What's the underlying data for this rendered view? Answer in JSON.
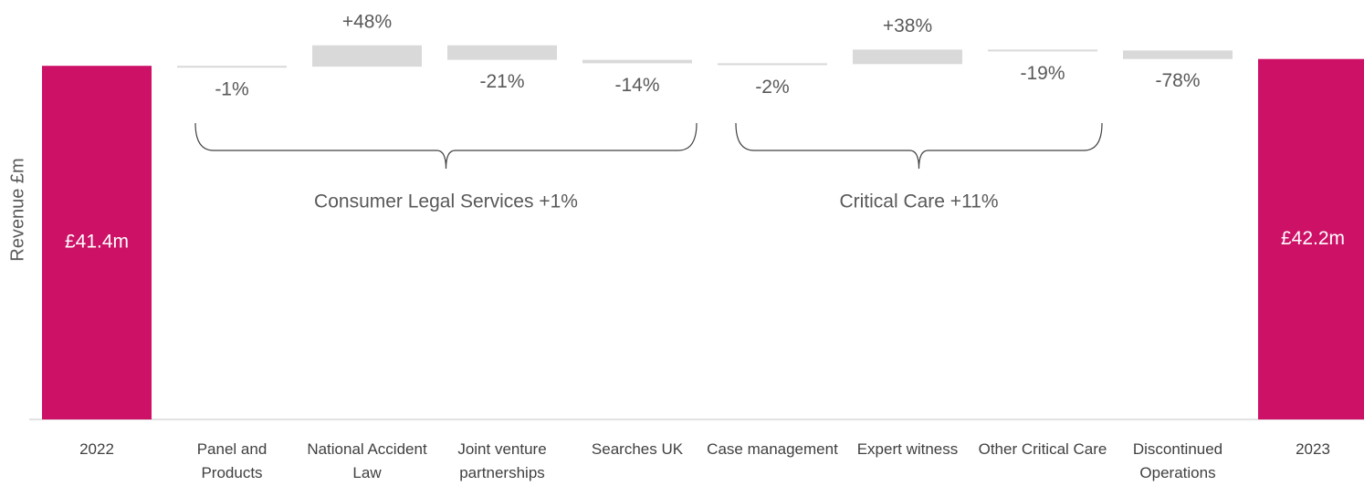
{
  "chart_data": {
    "type": "waterfall",
    "y_label": "Revenue £m",
    "categories": [
      "2022",
      "Panel and Products",
      "National Accident Law",
      "Joint venture partnerships",
      "Searches UK",
      "Case management",
      "Expert witness",
      "Other Critical Care",
      "Discontinued Operations",
      "2023"
    ],
    "values": [
      41.4,
      -0.1,
      2.5,
      -1.7,
      -0.4,
      -0.1,
      1.7,
      -0.1,
      -1.0,
      42.2
    ],
    "totals": [
      0,
      9
    ],
    "value_labels": [
      "£41.4m",
      null,
      null,
      null,
      null,
      null,
      null,
      null,
      null,
      "£42.2m"
    ],
    "change_labels": [
      null,
      "-1%",
      "+48%",
      "-21%",
      "-14%",
      "-2%",
      "+38%",
      "-19%",
      "-78%",
      null
    ],
    "groups": [
      {
        "label": "Consumer Legal Services +1%",
        "from": 1,
        "to": 4
      },
      {
        "label": "Critical Care +11%",
        "from": 5,
        "to": 7
      }
    ],
    "total_color": "#cc1166",
    "change_color": "#d9d9d9",
    "ylim": [
      0,
      49
    ]
  }
}
